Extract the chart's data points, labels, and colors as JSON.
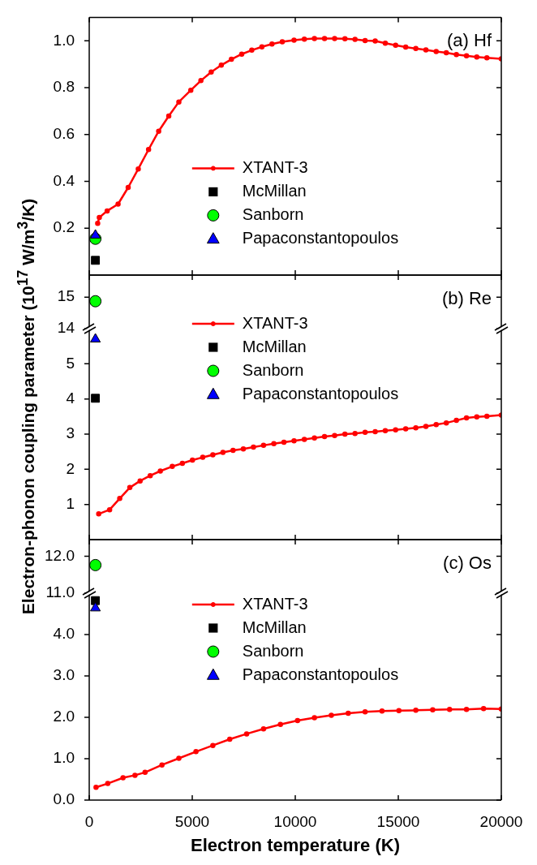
{
  "chart_data": [
    {
      "type": "line",
      "ylabel": "Electron-phonon coupling parameter (10$^{17}$ W/m$^{3}$/K)",
      "xlim": [
        0,
        20000
      ],
      "xticks": [
        0,
        5000,
        10000,
        15000,
        20000
      ],
      "tick_labels": "y",
      "ylim": [
        0,
        1.1
      ],
      "yticks": [
        0.2,
        0.4,
        0.6,
        0.8,
        {
          "value": 1,
          "label": "1.0"
        }
      ],
      "legend": "center",
      "annotations": [
        "(a) Hf"
      ],
      "series": [
        {
          "name": "XTANT-3",
          "color": "#ff0000",
          "marker": "circle",
          "x": [
            410,
            490,
            870,
            1400,
            1890,
            2380,
            2880,
            3370,
            3860,
            4350,
            4930,
            5420,
            5920,
            6410,
            6900,
            7400,
            7890,
            8380,
            8870,
            9370,
            9940,
            10440,
            10930,
            11420,
            11910,
            12410,
            12900,
            13390,
            13880,
            14370,
            14870,
            15360,
            15850,
            16340,
            16840,
            17330,
            17820,
            18310,
            18810,
            19300,
            20000
          ],
          "values": [
            0.221,
            0.246,
            0.274,
            0.303,
            0.374,
            0.453,
            0.536,
            0.614,
            0.679,
            0.739,
            0.789,
            0.83,
            0.867,
            0.896,
            0.921,
            0.943,
            0.96,
            0.974,
            0.986,
            0.996,
            1.003,
            1.007,
            1.01,
            1.01,
            1.01,
            1.009,
            1.006,
            1.001,
            0.999,
            0.99,
            0.981,
            0.973,
            0.967,
            0.961,
            0.954,
            0.949,
            0.941,
            0.936,
            0.931,
            0.927,
            0.923
          ]
        },
        {
          "name": "McMillan",
          "type": "scatter",
          "color": "#000000",
          "marker": "square",
          "x": [
            300
          ],
          "values": [
            0.063
          ]
        },
        {
          "name": "Sanborn",
          "type": "scatter",
          "color": "#00ff00",
          "marker": "circle",
          "x": [
            300
          ],
          "values": [
            0.155
          ]
        },
        {
          "name": "Papaconstantopoulos",
          "type": "scatter",
          "color": "#0000ff",
          "marker": "triangle",
          "x": [
            300
          ],
          "values": [
            0.17
          ]
        }
      ]
    },
    {
      "type": "scatter",
      "xlim": [
        0,
        20000
      ],
      "xticks": [
        0,
        5000,
        10000,
        15000,
        20000
      ],
      "tick_labels": "y",
      "ylim": [
        14,
        15.7
      ],
      "yticks": [
        14,
        15
      ],
      "annotations": [
        "(b) Re"
      ],
      "series": [
        {
          "color": "#00ff00",
          "marker": "circle",
          "x": [
            300
          ],
          "values": [
            14.87
          ]
        }
      ]
    },
    {
      "type": "line",
      "xlim": [
        0,
        20000
      ],
      "xticks": [
        0,
        5000,
        10000,
        15000,
        20000
      ],
      "tick_labels": "y",
      "ylim": [
        0,
        6
      ],
      "yticks": [
        1,
        2,
        3,
        4,
        5
      ],
      "legend": "top",
      "series": [
        {
          "name": "XTANT-3",
          "color": "#ff0000",
          "marker": "circle",
          "x": [
            460,
            990,
            1480,
            1970,
            2470,
            2960,
            3450,
            4030,
            4520,
            5010,
            5510,
            6000,
            6490,
            6980,
            7480,
            7970,
            8460,
            8960,
            9450,
            9940,
            10440,
            10930,
            11420,
            11910,
            12410,
            12900,
            13390,
            13880,
            14370,
            14870,
            15360,
            15850,
            16340,
            16840,
            17330,
            17820,
            18310,
            18810,
            19300,
            20000
          ],
          "values": [
            0.73,
            0.85,
            1.17,
            1.48,
            1.67,
            1.82,
            1.95,
            2.08,
            2.17,
            2.26,
            2.34,
            2.41,
            2.48,
            2.54,
            2.58,
            2.63,
            2.68,
            2.73,
            2.77,
            2.81,
            2.85,
            2.89,
            2.93,
            2.96,
            3.0,
            3.02,
            3.05,
            3.07,
            3.1,
            3.12,
            3.15,
            3.18,
            3.22,
            3.27,
            3.32,
            3.39,
            3.46,
            3.49,
            3.51,
            3.54
          ]
        },
        {
          "name": "McMillan",
          "type": "scatter",
          "color": "#000000",
          "marker": "square",
          "x": [
            300
          ],
          "values": [
            4.02
          ]
        },
        {
          "name": "Sanborn",
          "type": "scatter",
          "color": "#00ff00",
          "marker": "circle"
        },
        {
          "name": "Papaconstantopoulos",
          "type": "scatter",
          "color": "#0000ff",
          "marker": "triangle",
          "x": [
            300
          ],
          "values": [
            5.7
          ]
        }
      ]
    },
    {
      "type": "scatter",
      "xlim": [
        0,
        20000
      ],
      "xticks": [
        0,
        5000,
        10000,
        15000,
        20000
      ],
      "tick_labels": "y",
      "ylim": [
        11,
        12.45
      ],
      "yticks": [
        {
          "value": 11,
          "label": "11.0"
        },
        {
          "value": 12,
          "label": "12.0"
        }
      ],
      "annotations": [
        "(c) Os"
      ],
      "series": [
        {
          "color": "#00ff00",
          "marker": "circle",
          "x": [
            300
          ],
          "values": [
            11.76
          ]
        }
      ]
    },
    {
      "type": "line",
      "xlabel": "Electron temperature (K)",
      "xlim": [
        0,
        20000
      ],
      "xticks": [
        0,
        5000,
        10000,
        15000,
        20000
      ],
      "ylim": [
        0,
        5
      ],
      "yticks": [
        {
          "value": 0,
          "label": "0.0"
        },
        {
          "value": 1,
          "label": "1.0"
        },
        {
          "value": 2,
          "label": "2.0"
        },
        {
          "value": 3,
          "label": "3.0"
        },
        {
          "value": 4,
          "label": "4.0"
        }
      ],
      "legend": "top",
      "series": [
        {
          "name": "XTANT-3",
          "color": "#ff0000",
          "marker": "circle",
          "x": [
            330,
            900,
            1640,
            2220,
            2710,
            3530,
            4350,
            5180,
            6000,
            6820,
            7640,
            8460,
            9280,
            10110,
            10930,
            11750,
            12570,
            13390,
            14210,
            15030,
            15850,
            16670,
            17490,
            18310,
            19140,
            20000
          ],
          "values": [
            0.31,
            0.4,
            0.54,
            0.6,
            0.67,
            0.85,
            1.01,
            1.17,
            1.32,
            1.47,
            1.6,
            1.72,
            1.83,
            1.92,
            1.99,
            2.05,
            2.1,
            2.13,
            2.15,
            2.16,
            2.17,
            2.18,
            2.19,
            2.19,
            2.21,
            2.2
          ]
        },
        {
          "name": "McMillan",
          "type": "scatter",
          "color": "#000000",
          "marker": "square",
          "x": [
            300
          ],
          "values": [
            4.82
          ]
        },
        {
          "name": "Sanborn",
          "type": "scatter",
          "color": "#00ff00",
          "marker": "circle"
        },
        {
          "name": "Papaconstantopoulos",
          "type": "scatter",
          "color": "#0000ff",
          "marker": "triangle",
          "x": [
            300
          ],
          "values": [
            4.64
          ]
        }
      ]
    }
  ]
}
